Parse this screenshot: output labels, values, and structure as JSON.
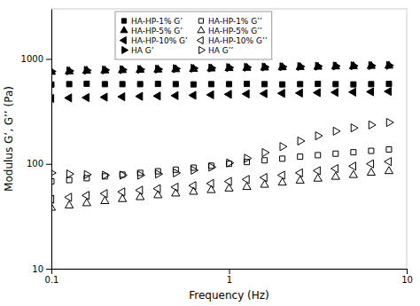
{
  "chart_data": {
    "type": "scatter",
    "xlabel": "Frequency (Hz)",
    "ylabel": "Modulus G’, G’’ (Pa)",
    "log": true,
    "xlim": [
      0.1,
      10
    ],
    "ylim": [
      10,
      3000
    ],
    "xticks": [
      0.1,
      1,
      10
    ],
    "yticks": [
      10,
      100,
      1000
    ],
    "grid": false,
    "legend": "upper left",
    "x": [
      0.1,
      0.126,
      0.158,
      0.2,
      0.251,
      0.316,
      0.398,
      0.501,
      0.631,
      0.794,
      1.0,
      1.259,
      1.585,
      1.995,
      2.512,
      3.162,
      3.981,
      5.012,
      6.31,
      7.943
    ],
    "series": [
      {
        "name": "HA-HP-1%  G’",
        "marker": "square",
        "color": "black",
        "values": [
          570,
          575,
          580,
          575,
          575,
          575,
          578,
          575,
          572,
          575,
          575,
          578,
          575,
          572,
          575,
          578,
          575,
          572,
          575,
          578
        ]
      },
      {
        "name": "HA-HP-5%  G’",
        "marker": "triangle-up",
        "color": "black",
        "values": [
          750,
          760,
          770,
          775,
          780,
          785,
          790,
          795,
          800,
          808,
          815,
          820,
          825,
          830,
          835,
          840,
          845,
          850,
          855,
          860
        ]
      },
      {
        "name": "HA-HP-10%  G’",
        "marker": "triangle-left",
        "color": "black",
        "values": [
          420,
          425,
          428,
          432,
          436,
          440,
          443,
          447,
          450,
          455,
          460,
          464,
          467,
          470,
          473,
          477,
          480,
          483,
          486,
          490
        ]
      },
      {
        "name": "HA  G’",
        "marker": "triangle-right",
        "color": "black",
        "values": [
          760,
          770,
          778,
          785,
          790,
          795,
          800,
          808,
          815,
          820,
          828,
          833,
          838,
          843,
          847,
          852,
          856,
          860,
          864,
          868
        ]
      },
      {
        "name": "HA-HP-1%  G’’",
        "marker": "square-open",
        "color": "black",
        "values": [
          68,
          70,
          73,
          76,
          79,
          82,
          85,
          88,
          92,
          96,
          100,
          104,
          108,
          112,
          117,
          121,
          125,
          129,
          133,
          137
        ]
      },
      {
        "name": "HA-HP-5%  G’’",
        "marker": "triangle-up-open",
        "color": "black",
        "values": [
          38,
          40,
          42,
          44,
          46,
          48,
          50,
          52,
          54,
          56,
          58,
          60,
          63,
          66,
          69,
          72,
          75,
          78,
          82,
          85
        ]
      },
      {
        "name": "HA-HP-10%  G’’",
        "marker": "triangle-left-open",
        "color": "black",
        "values": [
          46,
          48,
          50,
          52,
          54,
          56,
          58,
          60,
          62,
          65,
          68,
          71,
          74,
          78,
          82,
          86,
          90,
          95,
          100,
          105
        ]
      },
      {
        "name": "HA  G’’",
        "marker": "triangle-right-open",
        "color": "black",
        "values": [
          82,
          80,
          79,
          78,
          78,
          78,
          80,
          82,
          87,
          93,
          102,
          113,
          128,
          146,
          165,
          185,
          205,
          220,
          235,
          248
        ]
      }
    ]
  }
}
